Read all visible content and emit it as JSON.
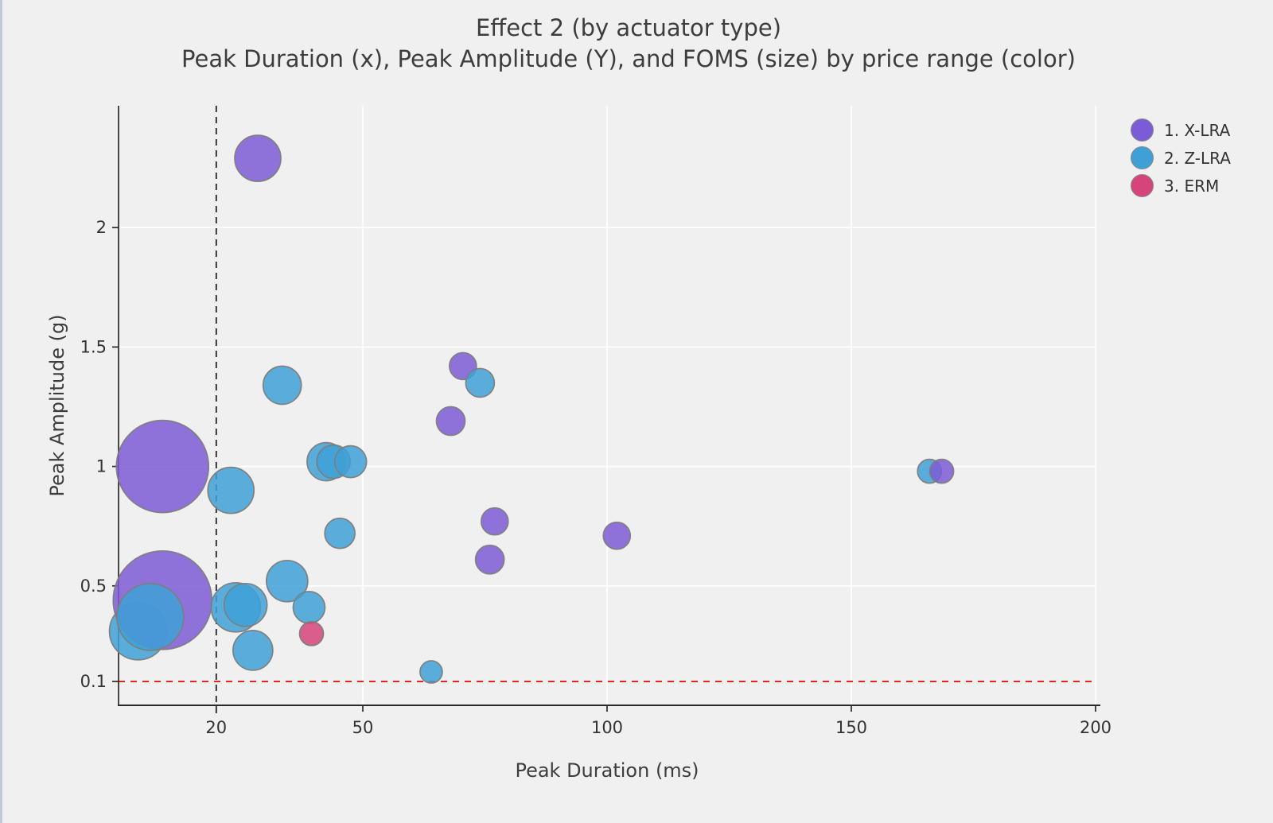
{
  "chart_data": {
    "type": "scatter",
    "title": "Effect 2 (by actuator type)",
    "subtitle": "Peak Duration (x), Peak Amplitude (Y), and FOMS (size) by price range (color)",
    "xlabel": "Peak Duration (ms)",
    "ylabel": "Peak Amplitude (g)",
    "xlim": [
      0,
      200
    ],
    "ylim": [
      0,
      2.51
    ],
    "xticks": [
      20,
      50,
      100,
      150,
      200
    ],
    "yticks": [
      2,
      1.5,
      1,
      0.5,
      0.1
    ],
    "ytick_labels": [
      "2",
      "1.5",
      "1",
      "0.5",
      "0.1"
    ],
    "grid": {
      "on": true,
      "color": "#ffffff",
      "x_values": [
        50,
        100,
        150,
        200
      ],
      "y_values": [
        0.5,
        1,
        1.5,
        2
      ]
    },
    "reference_lines": {
      "vline_x": 20,
      "vline_color": "#1a1a1a",
      "hline_y": 0.1,
      "hline_color": "#e32525"
    },
    "background_color": "#f0f0f0",
    "axis_color": "#2a2a2a",
    "legend_position": "top-right",
    "legend": [
      {
        "label": "1. X-LRA",
        "color": "#7c5cd6"
      },
      {
        "label": "2. Z-LRA",
        "color": "#3fa0d6"
      },
      {
        "label": "3. ERM",
        "color": "#d5447a"
      }
    ],
    "size_encoding": "FOMS (bubble radius, px)",
    "points": [
      {
        "g": 1,
        "x": 4,
        "y": 0.31,
        "r": 36
      },
      {
        "g": 0,
        "x": 9,
        "y": 0.44,
        "r": 62
      },
      {
        "g": 1,
        "x": 6.5,
        "y": 0.37,
        "r": 42
      },
      {
        "g": 0,
        "x": 9,
        "y": 1.0,
        "r": 58
      },
      {
        "g": 1,
        "x": 23,
        "y": 0.9,
        "r": 29
      },
      {
        "g": 1,
        "x": 24,
        "y": 0.41,
        "r": 31
      },
      {
        "g": 1,
        "x": 26,
        "y": 0.42,
        "r": 27
      },
      {
        "g": 1,
        "x": 27.5,
        "y": 0.23,
        "r": 25
      },
      {
        "g": 1,
        "x": 34.5,
        "y": 0.52,
        "r": 26
      },
      {
        "g": 1,
        "x": 39,
        "y": 0.41,
        "r": 20
      },
      {
        "g": 2,
        "x": 39.5,
        "y": 0.3,
        "r": 15
      },
      {
        "g": 1,
        "x": 33.5,
        "y": 1.34,
        "r": 24
      },
      {
        "g": 1,
        "x": 42.5,
        "y": 1.02,
        "r": 24
      },
      {
        "g": 1,
        "x": 44,
        "y": 1.02,
        "r": 21
      },
      {
        "g": 1,
        "x": 47.5,
        "y": 1.02,
        "r": 20
      },
      {
        "g": 1,
        "x": 45.3,
        "y": 0.72,
        "r": 19
      },
      {
        "g": 0,
        "x": 28.5,
        "y": 2.29,
        "r": 29
      },
      {
        "g": 0,
        "x": 70.5,
        "y": 1.42,
        "r": 17
      },
      {
        "g": 1,
        "x": 74,
        "y": 1.35,
        "r": 18
      },
      {
        "g": 0,
        "x": 68,
        "y": 1.19,
        "r": 18
      },
      {
        "g": 0,
        "x": 77,
        "y": 0.77,
        "r": 17
      },
      {
        "g": 0,
        "x": 76,
        "y": 0.61,
        "r": 18
      },
      {
        "g": 0,
        "x": 102,
        "y": 0.71,
        "r": 17
      },
      {
        "g": 1,
        "x": 64,
        "y": 0.14,
        "r": 14
      },
      {
        "g": 1,
        "x": 166,
        "y": 0.98,
        "r": 15
      },
      {
        "g": 0,
        "x": 168.5,
        "y": 0.98,
        "r": 15
      }
    ]
  }
}
